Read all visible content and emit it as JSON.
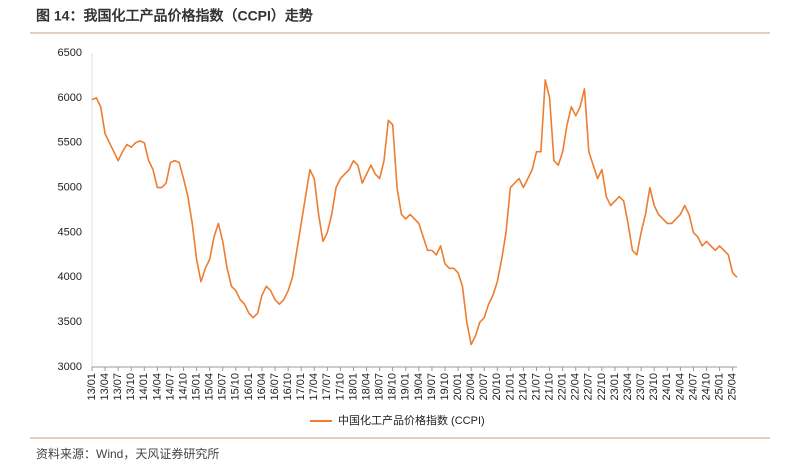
{
  "chart_data": {
    "type": "line",
    "title": "图 14：我国化工产品价格指数（CCPI）走势",
    "source": "资料来源：Wind，天风证券研究所",
    "categories": [
      "13/01",
      null,
      null,
      "13/04",
      null,
      null,
      "13/07",
      null,
      null,
      "13/10",
      null,
      null,
      "14/01",
      null,
      null,
      "14/04",
      null,
      null,
      "14/07",
      null,
      null,
      "14/10",
      null,
      null,
      "15/01",
      null,
      null,
      "15/04",
      null,
      null,
      "15/07",
      null,
      null,
      "15/10",
      null,
      null,
      "16/01",
      null,
      null,
      "16/04",
      null,
      null,
      "16/07",
      null,
      null,
      "16/10",
      null,
      null,
      "17/01",
      null,
      null,
      "17/04",
      null,
      null,
      "17/07",
      null,
      null,
      "17/10",
      null,
      null,
      "18/01",
      null,
      null,
      "18/04",
      null,
      null,
      "18/07",
      null,
      null,
      "18/10",
      null,
      null,
      "19/01",
      null,
      null,
      "19/04",
      null,
      null,
      "19/07",
      null,
      null,
      "19/10",
      null,
      null,
      "20/01",
      null,
      null,
      "20/04",
      null,
      null,
      "20/07",
      null,
      null,
      "20/10",
      null,
      null,
      "21/01",
      null,
      null,
      "21/04",
      null,
      null,
      "21/07",
      null,
      null,
      "21/10",
      null,
      null,
      "22/01",
      null,
      null,
      "22/04",
      null,
      null,
      "22/07",
      null,
      null,
      "22/10",
      null,
      null,
      "23/01",
      null,
      null,
      "23/04",
      null,
      null,
      "23/07",
      null,
      null,
      "23/10",
      null,
      null,
      "24/01",
      null,
      null,
      "24/04",
      null,
      null,
      "24/07",
      null,
      null,
      "24/10",
      null,
      null,
      "25/01",
      null,
      null,
      "25/04",
      null
    ],
    "series": [
      {
        "name": "中国化工产品价格指数 (CCPI)",
        "color": "#ed7d31",
        "values": [
          5980,
          6000,
          5900,
          5600,
          5500,
          5400,
          5300,
          5400,
          5480,
          5450,
          5500,
          5520,
          5500,
          5300,
          5200,
          5000,
          5000,
          5050,
          5280,
          5300,
          5280,
          5100,
          4900,
          4600,
          4200,
          3950,
          4100,
          4200,
          4450,
          4600,
          4400,
          4100,
          3900,
          3850,
          3750,
          3700,
          3600,
          3550,
          3600,
          3800,
          3900,
          3850,
          3750,
          3700,
          3750,
          3850,
          4000,
          4300,
          4600,
          4900,
          5200,
          5100,
          4700,
          4400,
          4500,
          4700,
          5000,
          5100,
          5150,
          5200,
          5300,
          5250,
          5050,
          5150,
          5250,
          5150,
          5100,
          5300,
          5750,
          5700,
          5000,
          4700,
          4650,
          4700,
          4650,
          4600,
          4450,
          4300,
          4300,
          4250,
          4350,
          4150,
          4100,
          4100,
          4050,
          3900,
          3500,
          3250,
          3350,
          3500,
          3550,
          3700,
          3800,
          3950,
          4200,
          4500,
          5000,
          5050,
          5100,
          5000,
          5100,
          5200,
          5400,
          5400,
          6200,
          6000,
          5300,
          5250,
          5400,
          5700,
          5900,
          5800,
          5900,
          6100,
          5400,
          5250,
          5100,
          5200,
          4900,
          4800,
          4850,
          4900,
          4850,
          4600,
          4300,
          4250,
          4500,
          4700,
          5000,
          4800,
          4700,
          4650,
          4600,
          4600,
          4650,
          4700,
          4800,
          4700,
          4500,
          4450,
          4350,
          4400,
          4350,
          4300,
          4350,
          4300,
          4250,
          4050,
          4000
        ]
      }
    ],
    "ylim": [
      3000,
      6500
    ],
    "yticks": [
      3000,
      3500,
      4000,
      4500,
      5000,
      5500,
      6000,
      6500
    ],
    "legend": "bottom"
  }
}
